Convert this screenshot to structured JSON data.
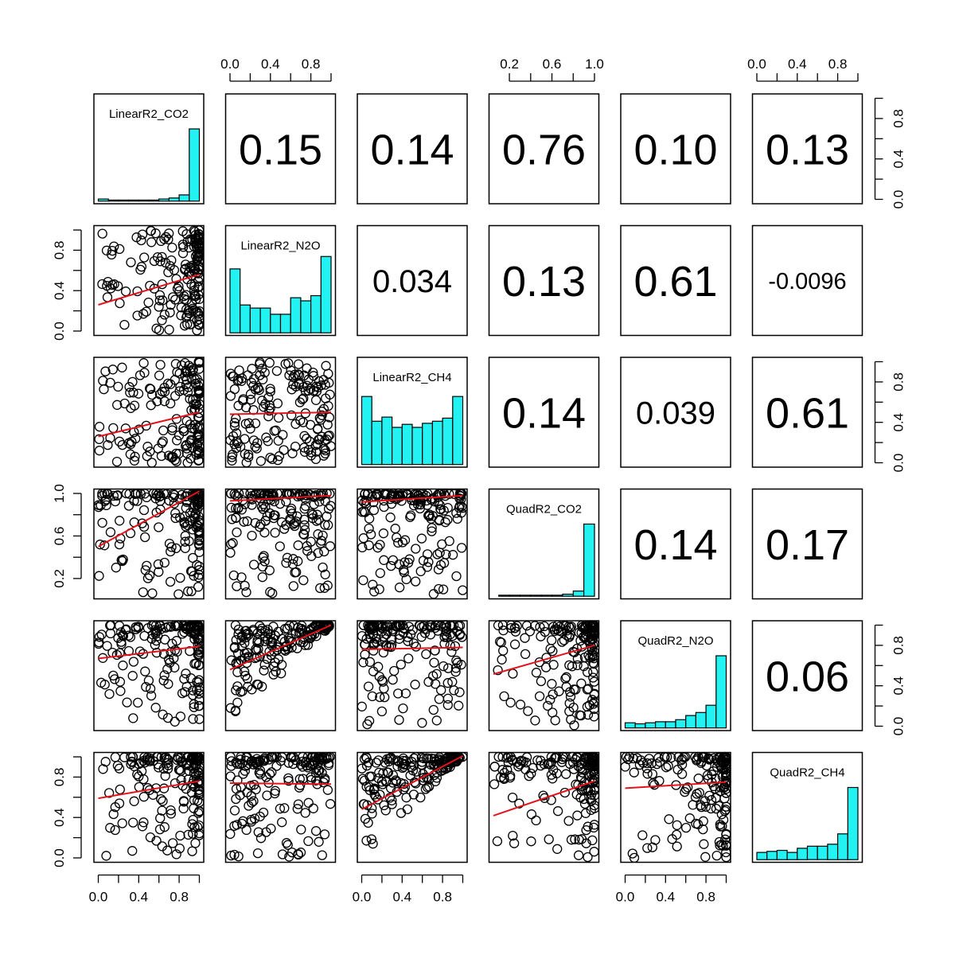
{
  "chart_data": {
    "type": "scatter",
    "variables": [
      "LinearR2_CO2",
      "LinearR2_N2O",
      "LinearR2_CH4",
      "QuadR2_CO2",
      "QuadR2_N2O",
      "QuadR2_CH4"
    ],
    "upper_panel_correlations": [
      {
        "row": 0,
        "col": 1,
        "label": "0.15"
      },
      {
        "row": 0,
        "col": 2,
        "label": "0.14"
      },
      {
        "row": 0,
        "col": 3,
        "label": "0.76"
      },
      {
        "row": 0,
        "col": 4,
        "label": "0.10"
      },
      {
        "row": 0,
        "col": 5,
        "label": "0.13"
      },
      {
        "row": 1,
        "col": 2,
        "label": "0.034"
      },
      {
        "row": 1,
        "col": 3,
        "label": "0.13"
      },
      {
        "row": 1,
        "col": 4,
        "label": "0.61"
      },
      {
        "row": 1,
        "col": 5,
        "label": "-0.0096"
      },
      {
        "row": 2,
        "col": 3,
        "label": "0.14"
      },
      {
        "row": 2,
        "col": 4,
        "label": "0.039"
      },
      {
        "row": 2,
        "col": 5,
        "label": "0.61"
      },
      {
        "row": 3,
        "col": 4,
        "label": "0.14"
      },
      {
        "row": 3,
        "col": 5,
        "label": "0.17"
      },
      {
        "row": 4,
        "col": 5,
        "label": "0.06"
      }
    ],
    "diagonal_histograms": [
      {
        "variable": "LinearR2_CO2",
        "bins": [
          0,
          0.1,
          0.2,
          0.3,
          0.4,
          0.5,
          0.6,
          0.7,
          0.8,
          0.9,
          1.0
        ],
        "relative_heights": [
          0.02,
          0.01,
          0.01,
          0.01,
          0.01,
          0.01,
          0.02,
          0.03,
          0.06,
          0.7
        ]
      },
      {
        "variable": "LinearR2_N2O",
        "bins": [
          0,
          0.1,
          0.2,
          0.3,
          0.4,
          0.5,
          0.6,
          0.7,
          0.8,
          0.9,
          1.0
        ],
        "relative_heights": [
          0.62,
          0.27,
          0.24,
          0.24,
          0.18,
          0.18,
          0.34,
          0.31,
          0.36,
          0.74
        ]
      },
      {
        "variable": "LinearR2_CH4",
        "bins": [
          0,
          0.1,
          0.2,
          0.3,
          0.4,
          0.5,
          0.6,
          0.7,
          0.8,
          0.9,
          1.0
        ],
        "relative_heights": [
          0.66,
          0.42,
          0.46,
          0.36,
          0.39,
          0.36,
          0.4,
          0.42,
          0.45,
          0.66
        ]
      },
      {
        "variable": "QuadR2_CO2",
        "bins": [
          0.1,
          0.2,
          0.3,
          0.4,
          0.5,
          0.6,
          0.7,
          0.8,
          0.9,
          1.0
        ],
        "relative_heights": [
          0.01,
          0.01,
          0.01,
          0.01,
          0.01,
          0.01,
          0.02,
          0.05,
          0.7
        ]
      },
      {
        "variable": "QuadR2_N2O",
        "bins": [
          0,
          0.1,
          0.2,
          0.3,
          0.4,
          0.5,
          0.6,
          0.7,
          0.8,
          0.9,
          1.0
        ],
        "relative_heights": [
          0.05,
          0.04,
          0.05,
          0.06,
          0.06,
          0.08,
          0.12,
          0.15,
          0.22,
          0.7
        ]
      },
      {
        "variable": "QuadR2_CH4",
        "bins": [
          0,
          0.1,
          0.2,
          0.3,
          0.4,
          0.5,
          0.6,
          0.7,
          0.8,
          0.9,
          1.0
        ],
        "relative_heights": [
          0.07,
          0.08,
          0.09,
          0.07,
          0.11,
          0.13,
          0.13,
          0.15,
          0.25,
          0.7
        ]
      }
    ],
    "lower_panel_fits": [
      {
        "row": 1,
        "col": 0,
        "intercept": 0.26,
        "slope": 0.3
      },
      {
        "row": 2,
        "col": 0,
        "intercept": 0.26,
        "slope": 0.24
      },
      {
        "row": 2,
        "col": 1,
        "intercept": 0.48,
        "slope": 0.02
      },
      {
        "row": 3,
        "col": 0,
        "intercept": 0.5,
        "slope": 0.52
      },
      {
        "row": 3,
        "col": 1,
        "intercept": 0.93,
        "slope": 0.05
      },
      {
        "row": 3,
        "col": 2,
        "intercept": 0.92,
        "slope": 0.06
      },
      {
        "row": 4,
        "col": 0,
        "intercept": 0.67,
        "slope": 0.12
      },
      {
        "row": 4,
        "col": 1,
        "intercept": 0.56,
        "slope": 0.44
      },
      {
        "row": 4,
        "col": 2,
        "intercept": 0.76,
        "slope": 0.02
      },
      {
        "row": 4,
        "col": 3,
        "intercept": 0.5,
        "slope": 0.3
      },
      {
        "row": 5,
        "col": 0,
        "intercept": 0.59,
        "slope": 0.17
      },
      {
        "row": 5,
        "col": 1,
        "intercept": 0.74,
        "slope": -0.01
      },
      {
        "row": 5,
        "col": 2,
        "intercept": 0.48,
        "slope": 0.53
      },
      {
        "row": 5,
        "col": 3,
        "intercept": 0.4,
        "slope": 0.36
      },
      {
        "row": 5,
        "col": 4,
        "intercept": 0.69,
        "slope": 0.06
      }
    ],
    "axes": {
      "top": [
        {
          "col": 1,
          "ticks": [
            "0.0",
            "0.4",
            "0.8"
          ],
          "values": [
            0,
            0.4,
            0.8
          ],
          "minor": [
            0.2,
            0.6,
            1.0
          ]
        },
        {
          "col": 3,
          "ticks": [
            "0.2",
            "0.6",
            "1.0"
          ],
          "values": [
            0.2,
            0.6,
            1.0
          ],
          "minor": [
            0.4,
            0.8
          ],
          "range": [
            0.05,
            1.0
          ]
        },
        {
          "col": 5,
          "ticks": [
            "0.0",
            "0.4",
            "0.8"
          ],
          "values": [
            0,
            0.4,
            0.8
          ],
          "minor": [
            0.2,
            0.6,
            1.0
          ]
        }
      ],
      "bottom": [
        {
          "col": 0,
          "ticks": [
            "0.0",
            "0.4",
            "0.8"
          ],
          "values": [
            0,
            0.4,
            0.8
          ],
          "minor": [
            0.2,
            0.6,
            1.0
          ]
        },
        {
          "col": 2,
          "ticks": [
            "0.0",
            "0.4",
            "0.8"
          ],
          "values": [
            0,
            0.4,
            0.8
          ],
          "minor": [
            0.2,
            0.6,
            1.0
          ]
        },
        {
          "col": 4,
          "ticks": [
            "0.0",
            "0.4",
            "0.8"
          ],
          "values": [
            0,
            0.4,
            0.8
          ],
          "minor": [
            0.2,
            0.6,
            1.0
          ]
        }
      ],
      "left": [
        {
          "row": 1,
          "ticks": [
            "0.0",
            "0.4",
            "0.8"
          ],
          "values": [
            0,
            0.4,
            0.8
          ],
          "minor": [
            0.2,
            0.6,
            1.0
          ]
        },
        {
          "row": 3,
          "ticks": [
            "0.2",
            "0.6",
            "1.0"
          ],
          "values": [
            0.2,
            0.6,
            1.0
          ],
          "minor": [
            0.4,
            0.8
          ],
          "range": [
            0.05,
            1.0
          ]
        },
        {
          "row": 5,
          "ticks": [
            "0.0",
            "0.4",
            "0.8"
          ],
          "values": [
            0,
            0.4,
            0.8
          ],
          "minor": [
            0.2,
            0.6,
            1.0
          ]
        }
      ],
      "right": [
        {
          "row": 0,
          "ticks": [
            "0.0",
            "0.4",
            "0.8"
          ],
          "values": [
            0,
            0.4,
            0.8
          ],
          "minor": [
            0.2,
            0.6,
            1.0
          ]
        },
        {
          "row": 2,
          "ticks": [
            "0.0",
            "0.4",
            "0.8"
          ],
          "values": [
            0,
            0.4,
            0.8
          ],
          "minor": [
            0.2,
            0.6,
            1.0
          ]
        },
        {
          "row": 4,
          "ticks": [
            "0.0",
            "0.4",
            "0.8"
          ],
          "values": [
            0,
            0.4,
            0.8
          ],
          "minor": [
            0.2,
            0.6,
            1.0
          ]
        }
      ]
    },
    "colors": {
      "histogram": "#22F2F2",
      "fit_line": "#E4131B",
      "points": "#000000"
    }
  }
}
